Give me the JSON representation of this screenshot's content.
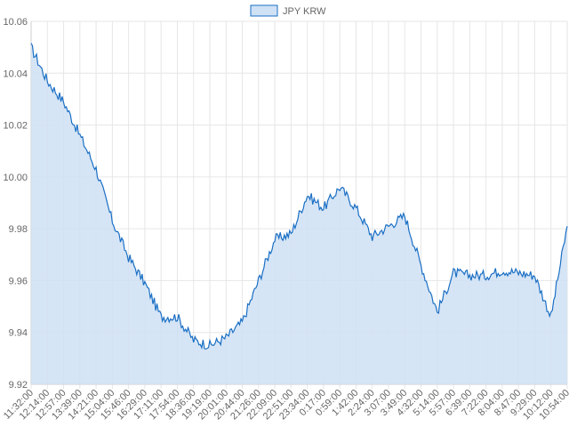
{
  "chart_data": {
    "type": "area",
    "title": "",
    "xlabel": "",
    "ylabel": "",
    "ylim": [
      9.92,
      10.06
    ],
    "yticks": [
      "10.06",
      "10.04",
      "10.02",
      "10.00",
      "9.98",
      "9.96",
      "9.94",
      "9.92"
    ],
    "grid": true,
    "legend_placement": "top-center",
    "colors": {
      "line": "#1a6fc4",
      "fill": "#cfe1f5",
      "grid": "#e6e6e6"
    },
    "x_tick_labels": [
      "11:32:00",
      "12:14:00",
      "12:57:00",
      "13:39:00",
      "14:21:00",
      "15:04:00",
      "15:46:00",
      "16:29:00",
      "17:11:00",
      "17:54:00",
      "18:36:00",
      "19:19:00",
      "20:01:00",
      "20:44:00",
      "21:26:00",
      "22:09:00",
      "22:51:00",
      "23:34:00",
      "0:17:00",
      "0:59:00",
      "1:42:00",
      "2:24:00",
      "3:07:00",
      "3:49:00",
      "4:32:00",
      "5:14:00",
      "5:57:00",
      "6:39:00",
      "7:22:00",
      "8:04:00",
      "8:47:00",
      "9:29:00",
      "10:12:00",
      "10:54:00"
    ],
    "series": [
      {
        "name": "JPY KRW",
        "x": [
          "11:32:00",
          "12:14:00",
          "12:57:00",
          "13:39:00",
          "14:21:00",
          "15:04:00",
          "15:46:00",
          "16:29:00",
          "17:11:00",
          "17:54:00",
          "18:36:00",
          "19:19:00",
          "20:01:00",
          "20:44:00",
          "21:26:00",
          "22:09:00",
          "22:51:00",
          "23:34:00",
          "0:17:00",
          "0:59:00",
          "1:42:00",
          "2:24:00",
          "3:07:00",
          "3:49:00",
          "4:32:00",
          "5:14:00",
          "5:57:00",
          "6:39:00",
          "7:22:00",
          "8:04:00",
          "8:47:00",
          "9:29:00",
          "10:12:00",
          "10:54:00"
        ],
        "values": [
          10.05,
          10.037,
          10.029,
          10.016,
          10.003,
          9.983,
          9.969,
          9.959,
          9.946,
          9.946,
          9.937,
          9.935,
          9.938,
          9.944,
          9.96,
          9.976,
          9.978,
          9.993,
          9.988,
          9.996,
          9.988,
          9.977,
          9.981,
          9.985,
          9.966,
          9.948,
          9.963,
          9.962,
          9.962,
          9.964,
          9.963,
          9.962,
          9.946,
          9.981
        ]
      }
    ]
  }
}
